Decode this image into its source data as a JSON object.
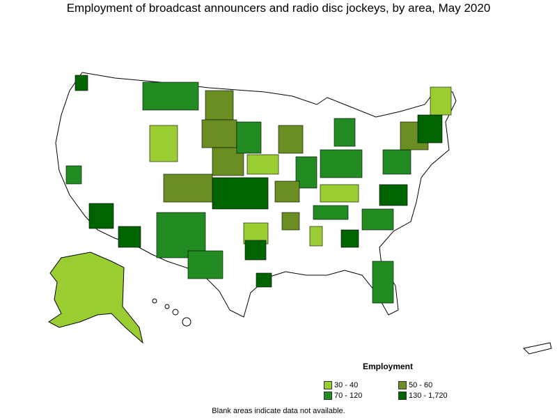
{
  "title": "Employment of broadcast announcers and radio disc jockeys, by area, May 2020",
  "legend": {
    "title": "Employment",
    "items": [
      {
        "label": "30 - 40",
        "color": "#9acd32"
      },
      {
        "label": "50 - 60",
        "color": "#6b8e23"
      },
      {
        "label": "70 - 120",
        "color": "#228b22"
      },
      {
        "label": "130 - 1,720",
        "color": "#006400"
      }
    ]
  },
  "note": "Blank areas indicate data not available.",
  "colors": {
    "blank": "#ffffff",
    "border": "#000000"
  }
}
